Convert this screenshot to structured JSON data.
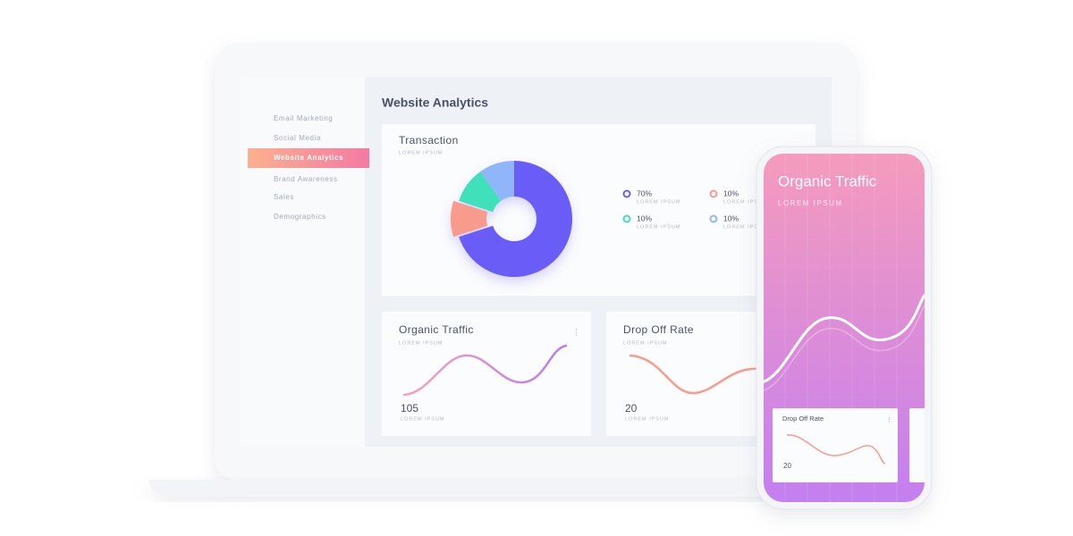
{
  "sidebar": {
    "items": [
      "Email Marketing",
      "Social Media",
      "Website Analytics",
      "Brand Awareness",
      "Sales",
      "Demographics"
    ],
    "active": 2
  },
  "dashboard": {
    "title": "Website Analytics",
    "transaction": {
      "title": "Transaction",
      "subtitle": "LOREM IPSUM",
      "segments": [
        {
          "value": 70,
          "label": "70%",
          "caption": "LOREM IPSUM",
          "color": "#6b5cf6"
        },
        {
          "value": 10,
          "label": "10%",
          "caption": "LOREM IPSUM",
          "color": "#f99b8c"
        },
        {
          "value": 10,
          "label": "10%",
          "caption": "LOREM IPSUM",
          "color": "#3fe0ba"
        },
        {
          "value": 10,
          "label": "10%",
          "caption": "LOREM IPSUM",
          "color": "#8fb6f8"
        }
      ]
    },
    "cards": [
      {
        "title": "Organic Traffic",
        "subtitle": "LOREM IPSUM",
        "value": 105,
        "caption": "LOREM IPSUM"
      },
      {
        "title": "Drop Off Rate",
        "subtitle": "LOREM IPSUM",
        "value": 20,
        "caption": "LOREM IPSUM"
      }
    ]
  },
  "phone": {
    "title": "Organic Traffic",
    "subtitle": "LOREM IPSUM",
    "card": {
      "title": "Drop Off Rate",
      "value": 20
    }
  }
}
